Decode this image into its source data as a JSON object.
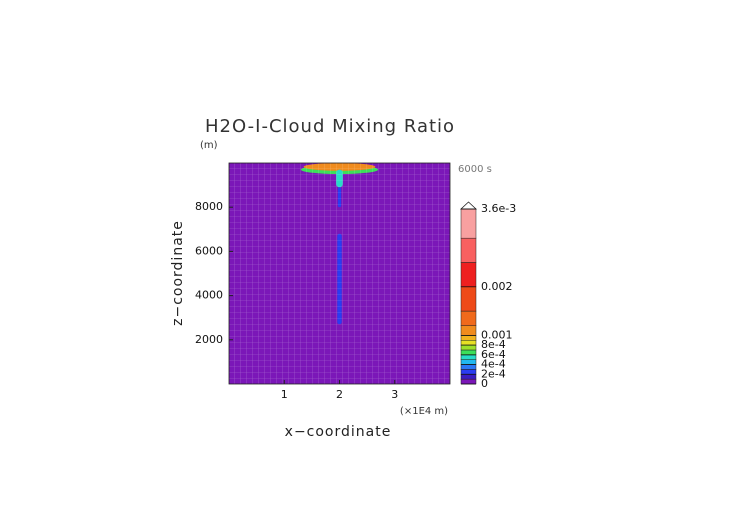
{
  "chart_data": {
    "type": "contour",
    "title": "H2O-I-Cloud Mixing Ratio",
    "y_unit": "(m)",
    "time_label": "6000 s",
    "x_label": "x−coordinate",
    "y_label": "z−coordinate",
    "x_unit": "(×1E4 m)",
    "xlim": [
      0,
      4
    ],
    "ylim": [
      0,
      10000
    ],
    "xticks": [
      1,
      2,
      3
    ],
    "yticks": [
      2000,
      4000,
      6000,
      8000
    ],
    "grid": true,
    "colorbar": {
      "lim": [
        0,
        0.0036
      ],
      "levels": [
        0,
        0.0001,
        0.0002,
        0.0003,
        0.0004,
        0.0005,
        0.0006,
        0.0007,
        0.0008,
        0.0009,
        0.001,
        0.0012,
        0.0015,
        0.002,
        0.0025,
        0.003,
        0.0036
      ],
      "colors": [
        "#7b17b8",
        "#3a1cc0",
        "#2a3cf0",
        "#2c78f5",
        "#22b8f0",
        "#27dcc8",
        "#3cdf5a",
        "#9de02a",
        "#e7e025",
        "#f0b420",
        "#f08c1e",
        "#f06a1c",
        "#ee4a18",
        "#ee2020",
        "#f86060",
        "#f8a0a0"
      ],
      "ticks": [
        0,
        {
          "value": 0.0002,
          "label": "2e-4"
        },
        {
          "value": 0.0004,
          "label": "4e-4"
        },
        {
          "value": 0.0006,
          "label": "6e-4"
        },
        {
          "value": 0.0008,
          "label": "8e-4"
        },
        0.001,
        0.002,
        {
          "value": 0.0036,
          "label": "3.6e-3"
        }
      ]
    },
    "regions": [
      {
        "x0": 1.3,
        "x1": 2.7,
        "z0": 9500,
        "z1": 9900,
        "value": 0.0006
      },
      {
        "x0": 1.35,
        "x1": 2.65,
        "z0": 9650,
        "z1": 10000,
        "value": 0.0011
      },
      {
        "x0": 1.94,
        "x1": 2.06,
        "z0": 8900,
        "z1": 9700,
        "value": 0.0005
      },
      {
        "x0": 1.97,
        "x1": 2.03,
        "z0": 8000,
        "z1": 8900,
        "value": 0.0002
      },
      {
        "x0": 1.96,
        "x1": 2.04,
        "z0": 2700,
        "z1": 6800,
        "value": 0.0002
      }
    ]
  }
}
